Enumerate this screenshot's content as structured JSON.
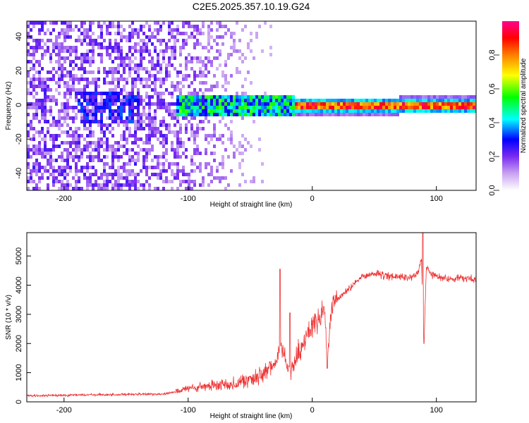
{
  "title": "C2E5.2025.357.10.19.G24",
  "chart_data": [
    {
      "type": "heatmap",
      "xlabel": "Height of straight line (km)",
      "ylabel": "Frequency (Hz)",
      "xlim": [
        -230,
        132
      ],
      "ylim": [
        -50,
        49
      ],
      "x_ticks": [
        -200,
        -100,
        0,
        100
      ],
      "y_ticks": [
        -40,
        -20,
        0,
        20,
        40
      ],
      "colorbar": {
        "label": "Normalized spectral amplitude",
        "range": [
          0,
          1
        ],
        "ticks": [
          0.0,
          0.2,
          0.4,
          0.6,
          0.8
        ],
        "colormap": "rainbow",
        "colors": [
          "#ffffff",
          "#8a2be2",
          "#0000ff",
          "#00ffff",
          "#00ff00",
          "#ffff00",
          "#ff7f00",
          "#ff0000",
          "#ff00a0"
        ]
      },
      "description_points": [
        {
          "x": -230,
          "frequency_spread_hz": 49,
          "amplitude": 0.1
        },
        {
          "x": -160,
          "frequency_center_hz": 0,
          "amplitude": 0.2
        },
        {
          "x": -100,
          "frequency_spread_hz": 6,
          "amplitude": 0.45
        },
        {
          "x": -50,
          "frequency_spread_hz": 5,
          "amplitude": 0.5
        },
        {
          "x": -15,
          "frequency_spread_hz": 4,
          "amplitude": 0.5
        },
        {
          "x": 0,
          "frequency_center_hz": 0,
          "amplitude": 0.95
        },
        {
          "x": 50,
          "frequency_center_hz": 0,
          "amplitude": 0.85
        },
        {
          "x": 90,
          "frequency_center_hz": 1,
          "amplitude": 0.9
        },
        {
          "x": 132,
          "frequency_center_hz": 1,
          "amplitude": 0.8
        }
      ]
    },
    {
      "type": "line",
      "xlabel": "Height of straight line (km)",
      "ylabel": "SNR (10 * v/v)",
      "xlim": [
        -230,
        132
      ],
      "ylim": [
        0,
        5800
      ],
      "x_ticks": [
        -200,
        -100,
        0,
        100
      ],
      "y_ticks": [
        0,
        1000,
        2000,
        3000,
        4000,
        5000
      ],
      "color": "#ee3333",
      "x": [
        -230,
        -200,
        -150,
        -120,
        -110,
        -100,
        -80,
        -60,
        -40,
        -30,
        -25,
        -22,
        -20,
        -15,
        -10,
        0,
        10,
        12,
        15,
        20,
        30,
        40,
        50,
        60,
        70,
        80,
        85,
        88,
        90,
        92,
        95,
        100,
        110,
        120,
        132
      ],
      "values": [
        200,
        230,
        250,
        270,
        350,
        450,
        550,
        650,
        900,
        1300,
        2000,
        1700,
        1000,
        1300,
        1800,
        2600,
        3100,
        1200,
        3000,
        3500,
        3900,
        4300,
        4400,
        4300,
        4300,
        4250,
        4400,
        4900,
        2000,
        4700,
        4400,
        4300,
        4200,
        4250,
        4200
      ],
      "spikes": [
        {
          "x": -26,
          "value": 4550
        },
        {
          "x": -18,
          "value": 3050
        },
        {
          "x": 12,
          "value": 1150
        },
        {
          "x": 89,
          "value": 5800
        },
        {
          "x": 90,
          "value": 2000
        }
      ]
    }
  ]
}
